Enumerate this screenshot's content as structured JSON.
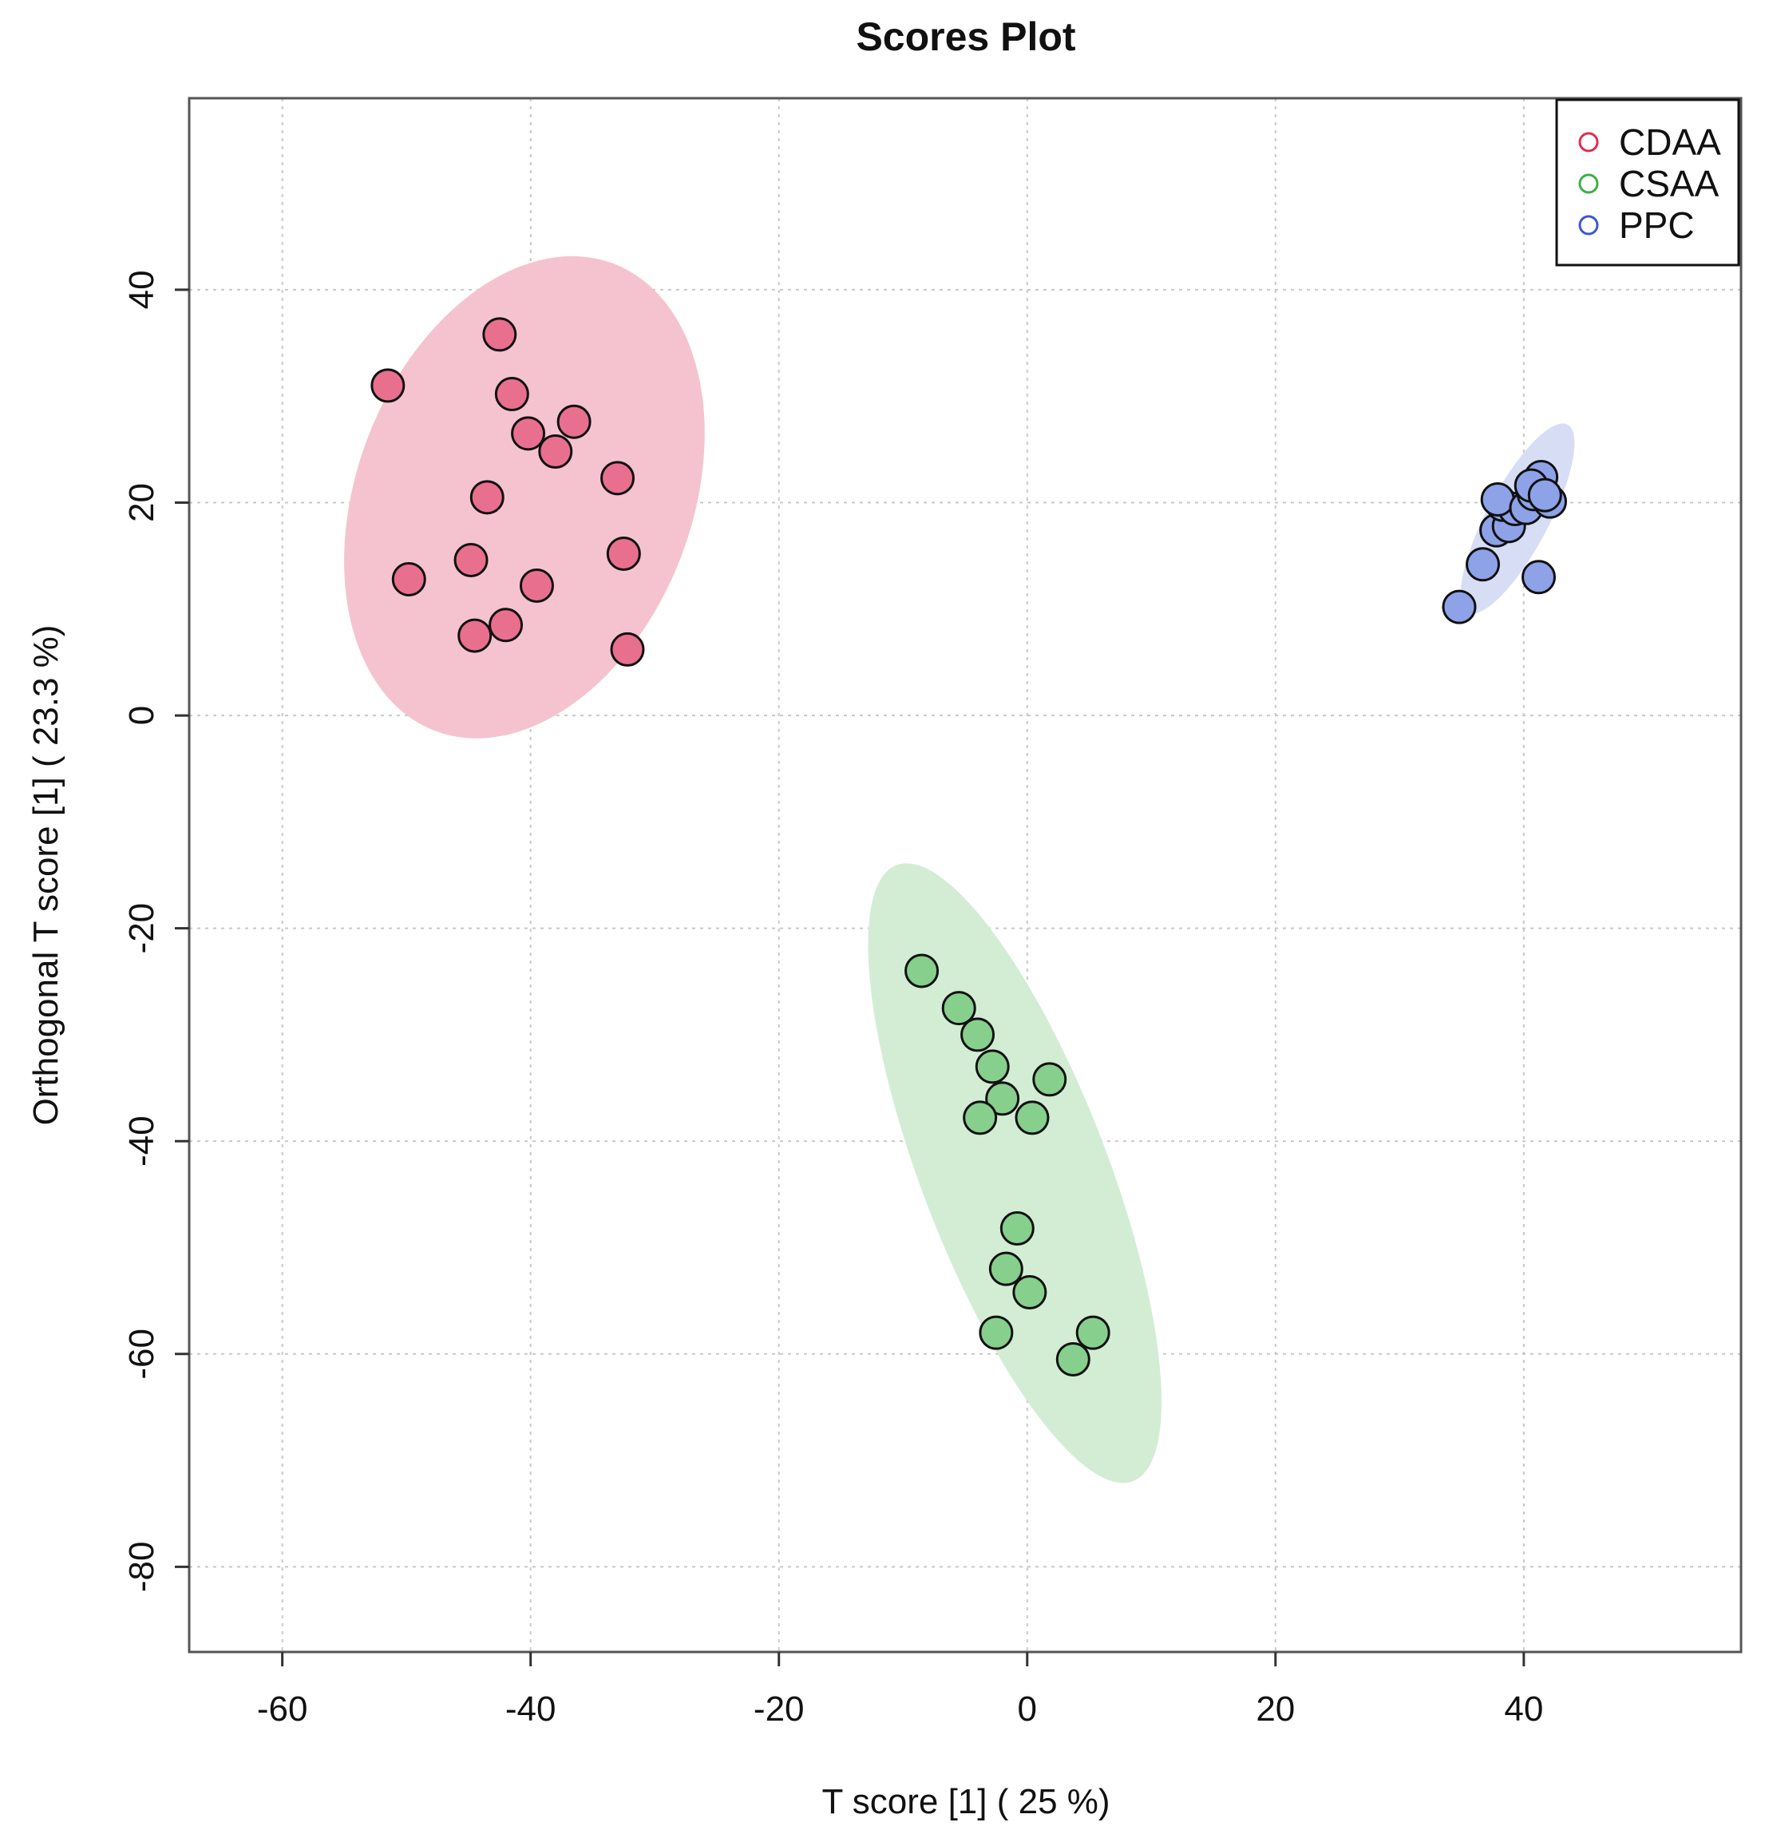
{
  "chart_data": {
    "type": "scatter",
    "title": "Scores Plot",
    "xlabel": "T score [1] ( 25 %)",
    "ylabel": "Orthogonal T score [1] ( 23.3 %)",
    "xlim": [
      -67.5,
      57.5
    ],
    "ylim": [
      -88,
      58
    ],
    "x_ticks": [
      "-60",
      "-40",
      "-20",
      "0",
      "20",
      "40"
    ],
    "y_ticks": [
      "-80",
      "-60",
      "-40",
      "-20",
      "0",
      "20",
      "40"
    ],
    "grid": true,
    "legend_position": "top-right",
    "series": [
      {
        "name": "CDAA",
        "color": "#e8708e",
        "legend_color": "#df2e4e",
        "ellipse_fill": "#f5c3cf",
        "ellipse": {
          "cx": -40.5,
          "cy": 20.5,
          "rx": 13.5,
          "ry": 23.5,
          "rotation_deg": 21
        },
        "points": [
          {
            "x": -51.5,
            "y": 31.0
          },
          {
            "x": -42.5,
            "y": 35.8
          },
          {
            "x": -41.5,
            "y": 30.2
          },
          {
            "x": -40.2,
            "y": 26.5
          },
          {
            "x": -38.0,
            "y": 24.8
          },
          {
            "x": -36.5,
            "y": 27.6
          },
          {
            "x": -33.0,
            "y": 22.3
          },
          {
            "x": -43.5,
            "y": 20.5
          },
          {
            "x": -49.8,
            "y": 12.8
          },
          {
            "x": -44.8,
            "y": 14.6
          },
          {
            "x": -39.5,
            "y": 12.2
          },
          {
            "x": -32.5,
            "y": 15.2
          },
          {
            "x": -44.5,
            "y": 7.5
          },
          {
            "x": -42.0,
            "y": 8.5
          },
          {
            "x": -32.2,
            "y": 6.2
          }
        ]
      },
      {
        "name": "CSAA",
        "color": "#86cf8c",
        "legend_color": "#3cb04a",
        "ellipse_fill": "#d2edd4",
        "ellipse": {
          "cx": -1.0,
          "cy": -43.0,
          "rx": 7.5,
          "ry": 31.0,
          "rotation_deg": -21
        },
        "points": [
          {
            "x": -8.5,
            "y": -24.0
          },
          {
            "x": -5.5,
            "y": -27.5
          },
          {
            "x": -4.0,
            "y": -30.0
          },
          {
            "x": -2.8,
            "y": -33.0
          },
          {
            "x": 1.8,
            "y": -34.2
          },
          {
            "x": -2.0,
            "y": -36.0
          },
          {
            "x": -3.8,
            "y": -37.8
          },
          {
            "x": 0.4,
            "y": -37.8
          },
          {
            "x": -0.8,
            "y": -48.2
          },
          {
            "x": -1.7,
            "y": -52.0
          },
          {
            "x": 0.2,
            "y": -54.2
          },
          {
            "x": -2.5,
            "y": -58.0
          },
          {
            "x": 3.7,
            "y": -60.5
          },
          {
            "x": 5.3,
            "y": -58.0
          }
        ]
      },
      {
        "name": "PPC",
        "color": "#8ea2e8",
        "legend_color": "#3b58d4",
        "ellipse_fill": "#d7ddf5",
        "ellipse": {
          "cx": 39.5,
          "cy": 18.5,
          "rx": 2.5,
          "ry": 10.0,
          "rotation_deg": 28
        },
        "points": [
          {
            "x": 34.8,
            "y": 10.2
          },
          {
            "x": 36.7,
            "y": 14.2
          },
          {
            "x": 41.2,
            "y": 13.0
          },
          {
            "x": 37.8,
            "y": 17.4
          },
          {
            "x": 38.8,
            "y": 17.8
          },
          {
            "x": 38.3,
            "y": 19.8
          },
          {
            "x": 39.3,
            "y": 19.4
          },
          {
            "x": 37.9,
            "y": 20.3
          },
          {
            "x": 40.2,
            "y": 19.5
          },
          {
            "x": 40.8,
            "y": 20.8
          },
          {
            "x": 42.1,
            "y": 20.1
          },
          {
            "x": 41.4,
            "y": 22.4
          },
          {
            "x": 40.6,
            "y": 21.6
          },
          {
            "x": 41.7,
            "y": 20.7
          }
        ]
      }
    ]
  }
}
